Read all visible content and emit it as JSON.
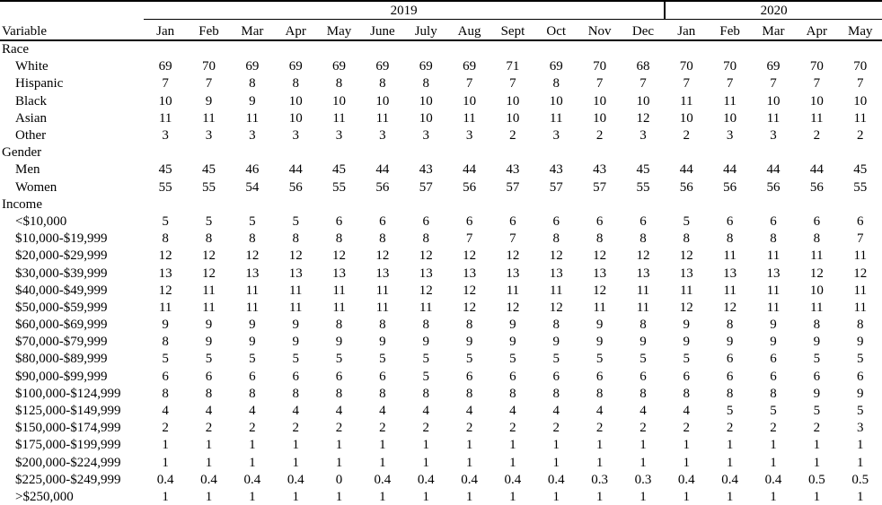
{
  "chart_data": {
    "type": "table",
    "corner_header": "Variable",
    "year_groups": [
      {
        "label": "2019",
        "months": [
          "Jan",
          "Feb",
          "Mar",
          "Apr",
          "May",
          "June",
          "July",
          "Aug",
          "Sept",
          "Oct",
          "Nov",
          "Dec"
        ]
      },
      {
        "label": "2020",
        "months": [
          "Jan",
          "Feb",
          "Mar",
          "Apr",
          "May"
        ]
      }
    ],
    "sections": [
      {
        "header": "Race",
        "rows": [
          {
            "label": "White",
            "values": [
              69,
              70,
              69,
              69,
              69,
              69,
              69,
              69,
              71,
              69,
              70,
              68,
              70,
              70,
              69,
              70,
              70
            ]
          },
          {
            "label": "Hispanic",
            "values": [
              7,
              7,
              8,
              8,
              8,
              8,
              8,
              7,
              7,
              8,
              7,
              7,
              7,
              7,
              7,
              7,
              7
            ]
          },
          {
            "label": "Black",
            "values": [
              10,
              9,
              9,
              10,
              10,
              10,
              10,
              10,
              10,
              10,
              10,
              10,
              11,
              11,
              10,
              10,
              10
            ]
          },
          {
            "label": "Asian",
            "values": [
              11,
              11,
              11,
              10,
              11,
              11,
              10,
              11,
              10,
              11,
              10,
              12,
              10,
              10,
              11,
              11,
              11
            ]
          },
          {
            "label": "Other",
            "values": [
              3,
              3,
              3,
              3,
              3,
              3,
              3,
              3,
              2,
              3,
              2,
              3,
              2,
              3,
              3,
              2,
              2
            ]
          }
        ]
      },
      {
        "header": "Gender",
        "rows": [
          {
            "label": "Men",
            "values": [
              45,
              45,
              46,
              44,
              45,
              44,
              43,
              44,
              43,
              43,
              43,
              45,
              44,
              44,
              44,
              44,
              45
            ]
          },
          {
            "label": "Women",
            "values": [
              55,
              55,
              54,
              56,
              55,
              56,
              57,
              56,
              57,
              57,
              57,
              55,
              56,
              56,
              56,
              56,
              55
            ]
          }
        ]
      },
      {
        "header": "Income",
        "rows": [
          {
            "label": "<$10,000",
            "values": [
              5,
              5,
              5,
              5,
              6,
              6,
              6,
              6,
              6,
              6,
              6,
              6,
              5,
              6,
              6,
              6,
              6
            ]
          },
          {
            "label": "$10,000-$19,999",
            "values": [
              8,
              8,
              8,
              8,
              8,
              8,
              8,
              7,
              7,
              8,
              8,
              8,
              8,
              8,
              8,
              8,
              7
            ]
          },
          {
            "label": "$20,000-$29,999",
            "values": [
              12,
              12,
              12,
              12,
              12,
              12,
              12,
              12,
              12,
              12,
              12,
              12,
              12,
              11,
              11,
              11,
              11
            ]
          },
          {
            "label": "$30,000-$39,999",
            "values": [
              13,
              12,
              13,
              13,
              13,
              13,
              13,
              13,
              13,
              13,
              13,
              13,
              13,
              13,
              13,
              12,
              12
            ]
          },
          {
            "label": "$40,000-$49,999",
            "values": [
              12,
              11,
              11,
              11,
              11,
              11,
              12,
              12,
              11,
              11,
              12,
              11,
              11,
              11,
              11,
              10,
              11
            ]
          },
          {
            "label": "$50,000-$59,999",
            "values": [
              11,
              11,
              11,
              11,
              11,
              11,
              11,
              12,
              12,
              12,
              11,
              11,
              12,
              12,
              11,
              11,
              11
            ]
          },
          {
            "label": "$60,000-$69,999",
            "values": [
              9,
              9,
              9,
              9,
              8,
              8,
              8,
              8,
              9,
              8,
              9,
              8,
              9,
              8,
              9,
              8,
              8
            ]
          },
          {
            "label": "$70,000-$79,999",
            "values": [
              8,
              9,
              9,
              9,
              9,
              9,
              9,
              9,
              9,
              9,
              9,
              9,
              9,
              9,
              9,
              9,
              9
            ]
          },
          {
            "label": "$80,000-$89,999",
            "values": [
              5,
              5,
              5,
              5,
              5,
              5,
              5,
              5,
              5,
              5,
              5,
              5,
              5,
              6,
              6,
              5,
              5
            ]
          },
          {
            "label": "$90,000-$99,999",
            "values": [
              6,
              6,
              6,
              6,
              6,
              6,
              5,
              6,
              6,
              6,
              6,
              6,
              6,
              6,
              6,
              6,
              6
            ]
          },
          {
            "label": "$100,000-$124,999",
            "values": [
              8,
              8,
              8,
              8,
              8,
              8,
              8,
              8,
              8,
              8,
              8,
              8,
              8,
              8,
              8,
              9,
              9
            ]
          },
          {
            "label": "$125,000-$149,999",
            "values": [
              4,
              4,
              4,
              4,
              4,
              4,
              4,
              4,
              4,
              4,
              4,
              4,
              4,
              5,
              5,
              5,
              5
            ]
          },
          {
            "label": "$150,000-$174,999",
            "values": [
              2,
              2,
              2,
              2,
              2,
              2,
              2,
              2,
              2,
              2,
              2,
              2,
              2,
              2,
              2,
              2,
              3
            ]
          },
          {
            "label": "$175,000-$199,999",
            "values": [
              1,
              1,
              1,
              1,
              1,
              1,
              1,
              1,
              1,
              1,
              1,
              1,
              1,
              1,
              1,
              1,
              1
            ]
          },
          {
            "label": "$200,000-$224,999",
            "values": [
              1,
              1,
              1,
              1,
              1,
              1,
              1,
              1,
              1,
              1,
              1,
              1,
              1,
              1,
              1,
              1,
              1
            ]
          },
          {
            "label": "$225,000-$249,999",
            "values": [
              0.4,
              0.4,
              0.4,
              0.4,
              0,
              0.4,
              0.4,
              0.4,
              0.4,
              0.4,
              0.3,
              0.3,
              0.4,
              0.4,
              0.4,
              0.5,
              0.5
            ]
          },
          {
            "label": ">$250,000",
            "values": [
              1,
              1,
              1,
              1,
              1,
              1,
              1,
              1,
              1,
              1,
              1,
              1,
              1,
              1,
              1,
              1,
              1
            ]
          }
        ]
      }
    ],
    "text_color": "#000000",
    "background_color": "#ffffff"
  }
}
